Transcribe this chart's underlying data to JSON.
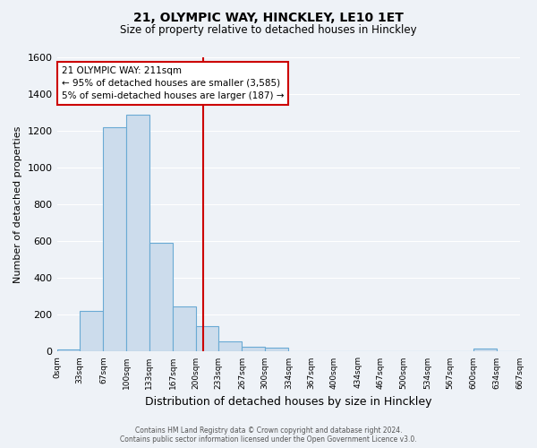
{
  "title": "21, OLYMPIC WAY, HINCKLEY, LE10 1ET",
  "subtitle": "Size of property relative to detached houses in Hinckley",
  "xlabel": "Distribution of detached houses by size in Hinckley",
  "ylabel": "Number of detached properties",
  "bar_color": "#ccdcec",
  "bar_edge_color": "#6aaad4",
  "background_color": "#eef2f7",
  "grid_color": "#ffffff",
  "bin_edges": [
    0,
    33,
    67,
    100,
    133,
    167,
    200,
    233,
    267,
    300,
    334,
    367,
    400,
    434,
    467,
    500,
    534,
    567,
    600,
    634,
    667
  ],
  "counts": [
    10,
    220,
    1220,
    1290,
    590,
    245,
    140,
    55,
    25,
    20,
    0,
    0,
    0,
    0,
    0,
    0,
    0,
    0,
    15,
    0
  ],
  "red_line_x": 211,
  "annotation_title": "21 OLYMPIC WAY: 211sqm",
  "annotation_line1": "← 95% of detached houses are smaller (3,585)",
  "annotation_line2": "5% of semi-detached houses are larger (187) →",
  "annotation_box_color": "#ffffff",
  "annotation_border_color": "#cc0000",
  "red_line_color": "#cc0000",
  "ylim": [
    0,
    1600
  ],
  "tick_labels": [
    "0sqm",
    "33sqm",
    "67sqm",
    "100sqm",
    "133sqm",
    "167sqm",
    "200sqm",
    "233sqm",
    "267sqm",
    "300sqm",
    "334sqm",
    "367sqm",
    "400sqm",
    "434sqm",
    "467sqm",
    "500sqm",
    "534sqm",
    "567sqm",
    "600sqm",
    "634sqm",
    "667sqm"
  ],
  "yticks": [
    0,
    200,
    400,
    600,
    800,
    1000,
    1200,
    1400,
    1600
  ],
  "footer_line1": "Contains HM Land Registry data © Crown copyright and database right 2024.",
  "footer_line2": "Contains public sector information licensed under the Open Government Licence v3.0."
}
